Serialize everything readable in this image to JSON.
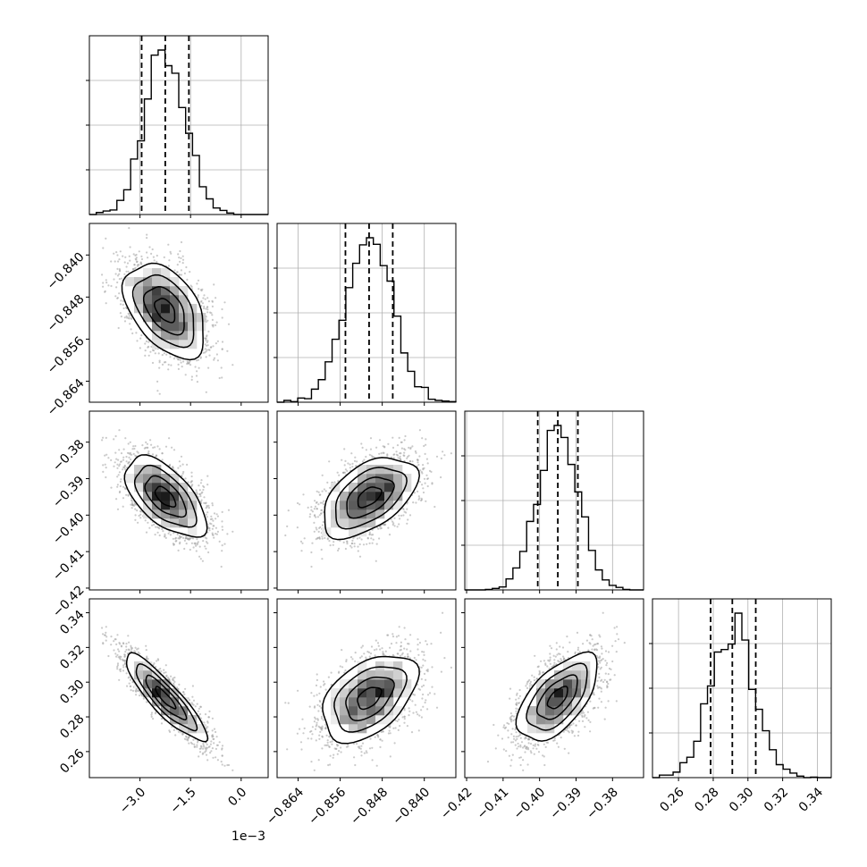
{
  "chart_data": {
    "type": "corner",
    "parameters": [
      {
        "range": [
          -0.0045,
          0.0008
        ],
        "ticks": [
          -0.003,
          -0.0015,
          0.0
        ],
        "tick_labels": [
          "−3.0",
          "−1.5",
          "0.0"
        ],
        "offset_label": "1e−3",
        "mean": -0.00225,
        "sd": 0.0006,
        "quantiles": [
          -0.00295,
          -0.00225,
          -0.00155
        ]
      },
      {
        "range": [
          -0.868,
          -0.834
        ],
        "ticks": [
          -0.864,
          -0.856,
          -0.848,
          -0.84
        ],
        "tick_labels": [
          "−0.864",
          "−0.856",
          "−0.848",
          "−0.840"
        ],
        "mean": -0.8505,
        "sd": 0.0045,
        "quantiles": [
          -0.855,
          -0.8505,
          -0.846
        ]
      },
      {
        "range": [
          -0.4205,
          -0.3715
        ],
        "ticks": [
          -0.42,
          -0.41,
          -0.4,
          -0.39,
          -0.38
        ],
        "tick_labels": [
          "−0.42",
          "−0.41",
          "−0.40",
          "−0.39",
          "−0.38"
        ],
        "mean": -0.395,
        "sd": 0.0055,
        "quantiles": [
          -0.4005,
          -0.395,
          -0.3895
        ]
      },
      {
        "range": [
          0.245,
          0.348
        ],
        "ticks": [
          0.26,
          0.28,
          0.3,
          0.32,
          0.34
        ],
        "tick_labels": [
          "0.26",
          "0.28",
          "0.30",
          "0.32",
          "0.34"
        ],
        "mean": 0.291,
        "sd": 0.0125,
        "quantiles": [
          0.2785,
          0.291,
          0.3045
        ]
      }
    ],
    "correlations": [
      [
        1.0,
        -0.45,
        -0.6,
        -0.88
      ],
      [
        -0.45,
        1.0,
        0.5,
        0.45
      ],
      [
        -0.6,
        0.5,
        1.0,
        0.6
      ],
      [
        -0.88,
        0.45,
        0.6,
        1.0
      ]
    ],
    "grid": true,
    "contour_levels": 3,
    "colors": {
      "line": "#000000",
      "scatter": "#9e9e9e",
      "grid": "#b0b0b0"
    }
  }
}
